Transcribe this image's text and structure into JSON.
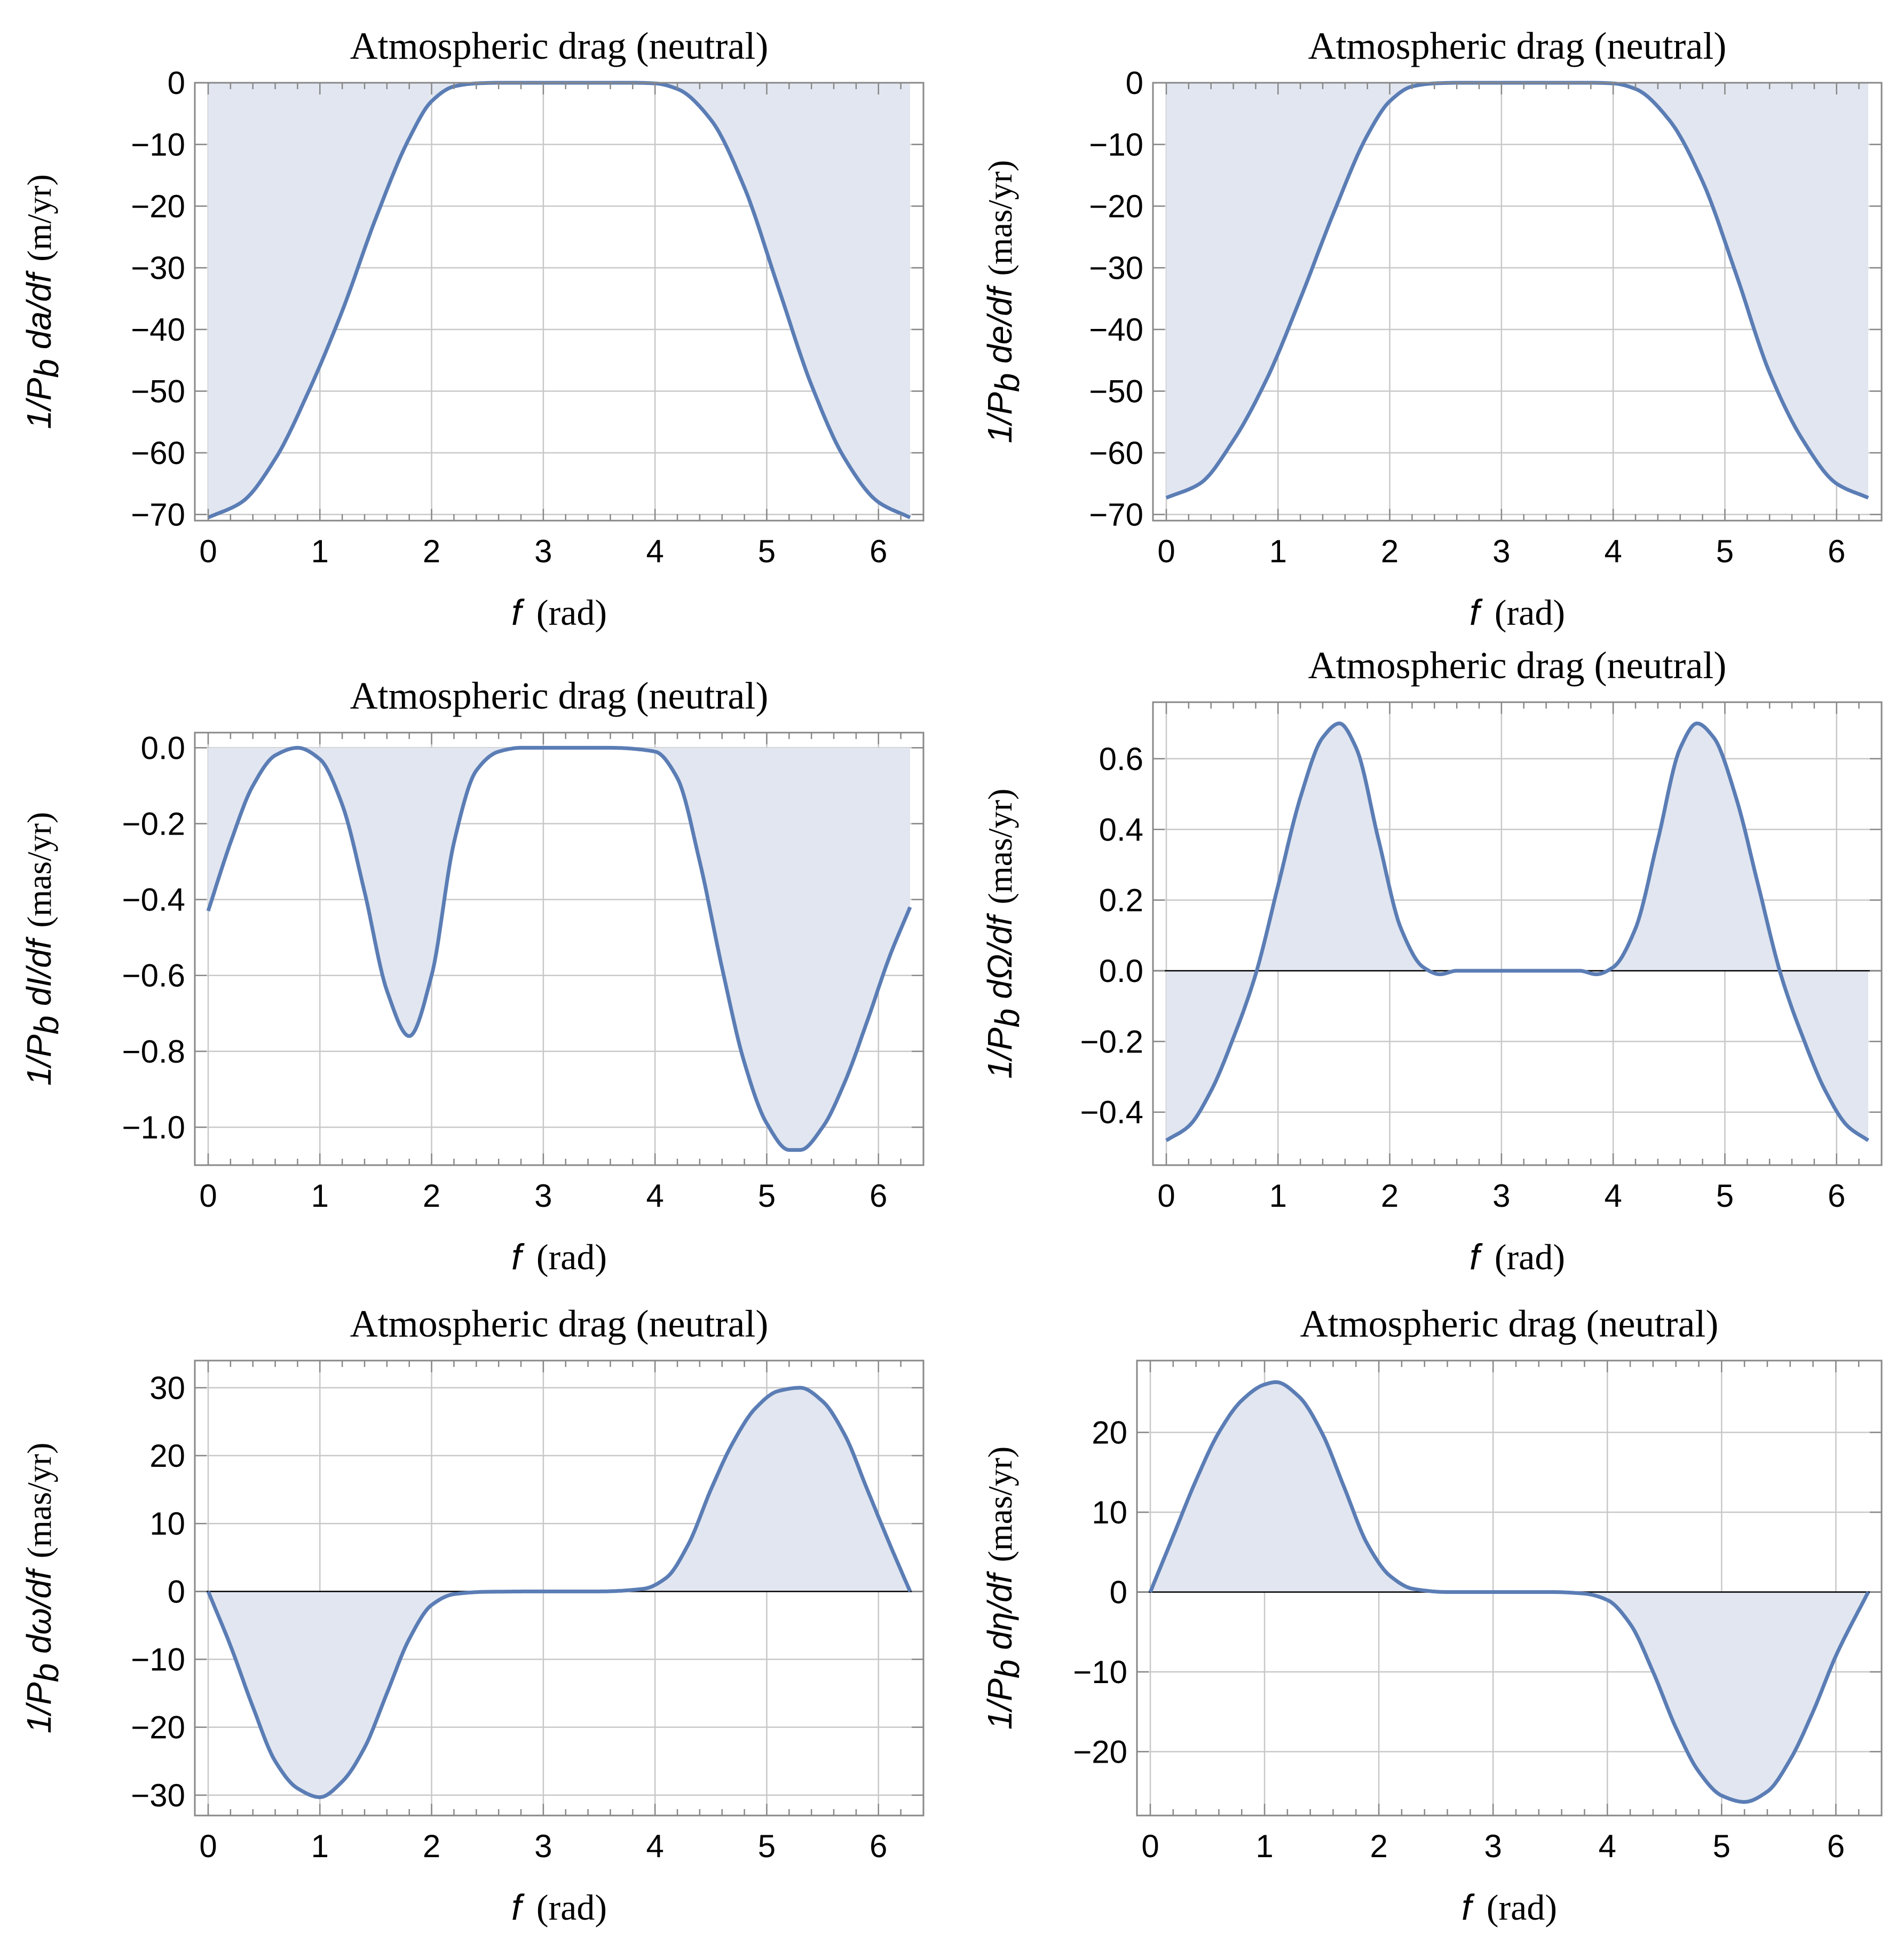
{
  "chart_data": [
    {
      "type": "area",
      "title": "Atmospheric drag (neutral)",
      "xlabel": "f  (rad)",
      "ylabel": "1/P_b da/df (m/yr)",
      "ylabel_parts": {
        "lead": "1/P",
        "sub": "b",
        "rest": " da/df",
        "unit": "(m/yr)"
      },
      "xlim": [
        0,
        6.2832
      ],
      "ylim": [
        -71,
        0
      ],
      "xticks": [
        0,
        1,
        2,
        3,
        4,
        5,
        6
      ],
      "yticks": [
        0,
        -10,
        -20,
        -30,
        -40,
        -50,
        -60,
        -70
      ],
      "ytick_labels": [
        "0",
        "−10",
        "−20",
        "−30",
        "−40",
        "−50",
        "−60",
        "−70"
      ],
      "fill_to": "top",
      "zero_line": false,
      "series": [
        {
          "name": "da/df",
          "x": [
            0,
            0.3,
            0.6,
            0.9,
            1.2,
            1.5,
            1.8,
            2.0,
            2.2,
            2.4,
            2.6,
            3.0,
            3.4,
            3.8,
            4.0,
            4.2,
            4.5,
            4.8,
            5.1,
            5.4,
            5.7,
            6.0,
            6.2832
          ],
          "y": [
            -70.5,
            -68,
            -61,
            -50,
            -37,
            -22,
            -9,
            -3,
            -0.6,
            -0.1,
            0,
            0,
            0,
            0,
            -0.1,
            -1,
            -6,
            -17,
            -33,
            -49,
            -61,
            -68,
            -70.5
          ]
        }
      ]
    },
    {
      "type": "area",
      "title": "Atmospheric drag (neutral)",
      "xlabel": "f  (rad)",
      "ylabel": "1/P_b de/df (mas/yr)",
      "ylabel_parts": {
        "lead": "1/P",
        "sub": "b",
        "rest": " de/df",
        "unit": "(mas/yr)"
      },
      "xlim": [
        0,
        6.2832
      ],
      "ylim": [
        -71,
        0
      ],
      "xticks": [
        0,
        1,
        2,
        3,
        4,
        5,
        6
      ],
      "yticks": [
        0,
        -10,
        -20,
        -30,
        -40,
        -50,
        -60,
        -70
      ],
      "ytick_labels": [
        "0",
        "−10",
        "−20",
        "−30",
        "−40",
        "−50",
        "−60",
        "−70"
      ],
      "fill_to": "top",
      "zero_line": false,
      "series": [
        {
          "name": "de/df",
          "x": [
            0,
            0.3,
            0.6,
            0.9,
            1.2,
            1.5,
            1.8,
            2.0,
            2.2,
            2.4,
            2.6,
            3.0,
            3.4,
            3.8,
            4.0,
            4.2,
            4.5,
            4.8,
            5.1,
            5.4,
            5.7,
            6.0,
            6.2832
          ],
          "y": [
            -67.3,
            -65,
            -58,
            -48,
            -35,
            -21,
            -8.5,
            -3,
            -0.6,
            -0.1,
            0,
            0,
            0,
            0,
            -0.1,
            -1,
            -6,
            -16,
            -31,
            -47,
            -58,
            -65,
            -67.3
          ]
        }
      ]
    },
    {
      "type": "area",
      "title": "Atmospheric drag (neutral)",
      "xlabel": "f  (rad)",
      "ylabel": "1/P_b dI/df (mas/yr)",
      "ylabel_parts": {
        "lead": "1/P",
        "sub": "b",
        "rest": " dI/df",
        "unit": "(mas/yr)"
      },
      "xlim": [
        0,
        6.2832
      ],
      "ylim": [
        -1.1,
        0.04
      ],
      "xticks": [
        0,
        1,
        2,
        3,
        4,
        5,
        6
      ],
      "yticks": [
        0,
        -0.2,
        -0.4,
        -0.6,
        -0.8,
        -1.0
      ],
      "ytick_labels": [
        "0.0",
        "−0.2",
        "−0.4",
        "−0.6",
        "−0.8",
        "−1.0"
      ],
      "fill_to": "top",
      "zero_line": false,
      "series": [
        {
          "name": "dI/df",
          "x": [
            0,
            0.2,
            0.4,
            0.6,
            0.8,
            1.0,
            1.2,
            1.4,
            1.6,
            1.8,
            2.0,
            2.2,
            2.4,
            2.6,
            2.8,
            3.2,
            3.6,
            4.0,
            4.2,
            4.4,
            4.6,
            4.8,
            5.0,
            5.2,
            5.3,
            5.5,
            5.7,
            5.9,
            6.1,
            6.2832
          ],
          "y": [
            -0.43,
            -0.25,
            -0.1,
            -0.02,
            0,
            -0.03,
            -0.15,
            -0.38,
            -0.64,
            -0.76,
            -0.6,
            -0.25,
            -0.06,
            -0.01,
            0,
            0,
            0,
            -0.01,
            -0.08,
            -0.3,
            -0.58,
            -0.83,
            -0.99,
            -1.06,
            -1.06,
            -1.0,
            -0.88,
            -0.72,
            -0.55,
            -0.42
          ]
        }
      ]
    },
    {
      "type": "area",
      "title": "Atmospheric drag (neutral)",
      "xlabel": "f  (rad)",
      "ylabel": "1/P_b dΩ/df (mas/yr)",
      "ylabel_parts": {
        "lead": "1/P",
        "sub": "b",
        "rest": " dΩ/df",
        "unit": "(mas/yr)"
      },
      "xlim": [
        0,
        6.2832
      ],
      "ylim": [
        -0.55,
        0.76
      ],
      "xticks": [
        0,
        1,
        2,
        3,
        4,
        5,
        6
      ],
      "yticks": [
        0.6,
        0.4,
        0.2,
        0.0,
        -0.2,
        -0.4
      ],
      "ytick_labels": [
        "0.6",
        "0.4",
        "0.2",
        "0.0",
        "−0.2",
        "−0.4"
      ],
      "fill_to": "zero",
      "zero_line": true,
      "series": [
        {
          "name": "dΩ/df",
          "x": [
            0,
            0.2,
            0.4,
            0.6,
            0.8,
            1.0,
            1.2,
            1.4,
            1.55,
            1.7,
            1.9,
            2.1,
            2.3,
            2.45,
            2.6,
            3.0,
            3.4,
            3.7,
            3.85,
            4.0,
            4.2,
            4.4,
            4.6,
            4.75,
            4.9,
            5.1,
            5.3,
            5.5,
            5.7,
            5.9,
            6.1,
            6.2832
          ],
          "y": [
            -0.48,
            -0.44,
            -0.34,
            -0.19,
            -0.01,
            0.24,
            0.49,
            0.66,
            0.7,
            0.63,
            0.37,
            0.12,
            0.01,
            -0.01,
            0,
            0,
            0,
            0,
            -0.01,
            0.01,
            0.12,
            0.37,
            0.63,
            0.7,
            0.66,
            0.49,
            0.24,
            -0.01,
            -0.19,
            -0.34,
            -0.44,
            -0.48
          ]
        }
      ]
    },
    {
      "type": "area",
      "title": "Atmospheric drag (neutral)",
      "xlabel": "f  (rad)",
      "ylabel": "1/P_b dω/df (mas/yr)",
      "ylabel_parts": {
        "lead": "1/P",
        "sub": "b",
        "rest": " dω/df",
        "unit": "(mas/yr)"
      },
      "xlim": [
        0,
        6.2832
      ],
      "ylim": [
        -33,
        34
      ],
      "xticks": [
        0,
        1,
        2,
        3,
        4,
        5,
        6
      ],
      "yticks": [
        30,
        20,
        10,
        0,
        -10,
        -20,
        -30
      ],
      "ytick_labels": [
        "30",
        "20",
        "10",
        "0",
        "−10",
        "−20",
        "−30"
      ],
      "fill_to": "zero",
      "zero_line": true,
      "series": [
        {
          "name": "dω/df",
          "x": [
            0,
            0.2,
            0.4,
            0.6,
            0.8,
            1.0,
            1.2,
            1.4,
            1.6,
            1.8,
            2.0,
            2.2,
            2.5,
            3.0,
            3.5,
            3.9,
            4.1,
            4.3,
            4.5,
            4.7,
            4.9,
            5.1,
            5.3,
            5.5,
            5.7,
            5.9,
            6.1,
            6.2832
          ],
          "y": [
            0,
            -8,
            -17,
            -25,
            -29,
            -30.3,
            -28,
            -23,
            -15,
            -7,
            -2,
            -0.4,
            -0.05,
            0,
            0,
            0.4,
            2,
            7,
            15,
            22,
            27,
            29.5,
            30,
            28,
            23,
            15,
            7,
            0
          ]
        }
      ]
    },
    {
      "type": "area",
      "title": "Atmospheric drag (neutral)",
      "xlabel": "f  (rad)",
      "ylabel": "1/P_b dη/df (mas/yr)",
      "ylabel_parts": {
        "lead": "1/P",
        "sub": "b",
        "rest": " dη/df",
        "unit": "(mas/yr)"
      },
      "xlim": [
        0,
        6.2832
      ],
      "ylim": [
        -28,
        29
      ],
      "xticks": [
        0,
        1,
        2,
        3,
        4,
        5,
        6
      ],
      "yticks": [
        20,
        10,
        0,
        -10,
        -20
      ],
      "ytick_labels": [
        "20",
        "10",
        "0",
        "−10",
        "−20"
      ],
      "fill_to": "zero",
      "zero_line": true,
      "series": [
        {
          "name": "dη/df",
          "x": [
            0,
            0.2,
            0.4,
            0.6,
            0.8,
            1.0,
            1.1,
            1.3,
            1.5,
            1.7,
            1.9,
            2.1,
            2.3,
            2.6,
            3.0,
            3.5,
            3.8,
            4.0,
            4.2,
            4.4,
            4.6,
            4.8,
            5.0,
            5.2,
            5.4,
            5.6,
            5.8,
            6.0,
            6.2832
          ],
          "y": [
            0,
            7,
            14,
            20,
            24,
            26,
            26.3,
            24.5,
            20,
            13,
            6,
            2,
            0.4,
            0,
            0,
            0,
            -0.2,
            -1,
            -4,
            -10,
            -17,
            -22.5,
            -25.5,
            -26.3,
            -25,
            -21,
            -15,
            -8,
            0
          ]
        }
      ]
    }
  ],
  "colors": {
    "line": "#5b7db5",
    "fill": "#e1e6f0",
    "grid": "#c8c8c8",
    "frame": "#888888"
  }
}
